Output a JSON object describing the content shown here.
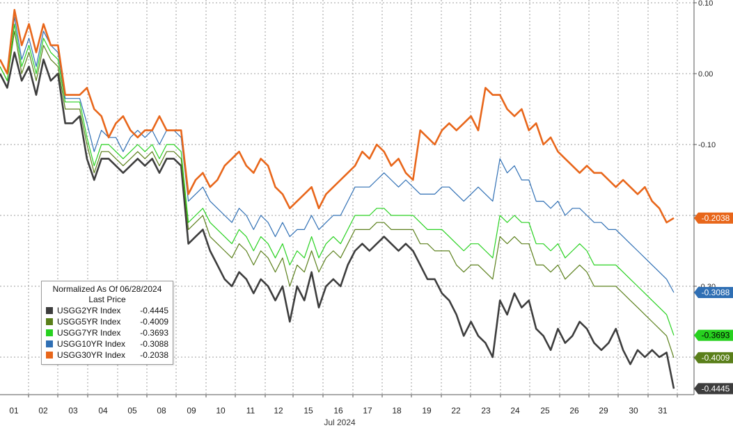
{
  "chart_data": {
    "type": "line",
    "xlabel": "Jul 2024",
    "x_ticks": [
      "01",
      "02",
      "03",
      "04",
      "05",
      "08",
      "09",
      "10",
      "11",
      "12",
      "15",
      "16",
      "17",
      "18",
      "19",
      "22",
      "23",
      "24",
      "25",
      "26",
      "29",
      "30",
      "31"
    ],
    "y_ticks": [
      "0.10",
      "0.00",
      "-0.10",
      "-0.20",
      "-0.30",
      "-0.40"
    ],
    "ylim": [
      -0.455,
      0.105
    ],
    "grid": true,
    "legend": {
      "title": "Normalized As Of 06/28/2024",
      "subtitle": "Last Price",
      "placement": "bottom-left"
    },
    "series": [
      {
        "name": "USGG2YR Index",
        "last": "-0.4445",
        "color": "#3d3d3d",
        "values": [
          0.0,
          -0.02,
          0.03,
          -0.01,
          0.01,
          -0.03,
          0.02,
          -0.01,
          0.0,
          -0.07,
          -0.07,
          -0.06,
          -0.12,
          -0.15,
          -0.12,
          -0.12,
          -0.13,
          -0.14,
          -0.13,
          -0.12,
          -0.13,
          -0.12,
          -0.14,
          -0.12,
          -0.12,
          -0.13,
          -0.24,
          -0.23,
          -0.22,
          -0.25,
          -0.27,
          -0.29,
          -0.3,
          -0.28,
          -0.29,
          -0.31,
          -0.29,
          -0.3,
          -0.32,
          -0.3,
          -0.35,
          -0.3,
          -0.32,
          -0.28,
          -0.33,
          -0.3,
          -0.29,
          -0.3,
          -0.27,
          -0.25,
          -0.24,
          -0.25,
          -0.24,
          -0.23,
          -0.24,
          -0.25,
          -0.24,
          -0.25,
          -0.27,
          -0.29,
          -0.29,
          -0.31,
          -0.32,
          -0.34,
          -0.37,
          -0.35,
          -0.37,
          -0.38,
          -0.4,
          -0.32,
          -0.34,
          -0.31,
          -0.33,
          -0.32,
          -0.36,
          -0.37,
          -0.39,
          -0.36,
          -0.38,
          -0.37,
          -0.35,
          -0.36,
          -0.38,
          -0.39,
          -0.38,
          -0.36,
          -0.39,
          -0.41,
          -0.39,
          -0.4,
          -0.39,
          -0.4,
          -0.3935,
          -0.4445
        ]
      },
      {
        "name": "USGG5YR Index",
        "last": "-0.4009",
        "color": "#5a7f1a",
        "values": [
          0.01,
          -0.01,
          0.06,
          0.0,
          0.03,
          -0.01,
          0.04,
          0.02,
          0.01,
          -0.05,
          -0.05,
          -0.05,
          -0.1,
          -0.14,
          -0.11,
          -0.11,
          -0.12,
          -0.13,
          -0.12,
          -0.11,
          -0.12,
          -0.11,
          -0.13,
          -0.11,
          -0.11,
          -0.12,
          -0.22,
          -0.21,
          -0.2,
          -0.23,
          -0.24,
          -0.25,
          -0.26,
          -0.24,
          -0.25,
          -0.27,
          -0.25,
          -0.26,
          -0.28,
          -0.26,
          -0.3,
          -0.27,
          -0.28,
          -0.25,
          -0.28,
          -0.26,
          -0.25,
          -0.26,
          -0.24,
          -0.22,
          -0.22,
          -0.22,
          -0.21,
          -0.21,
          -0.22,
          -0.22,
          -0.22,
          -0.22,
          -0.24,
          -0.24,
          -0.25,
          -0.25,
          -0.25,
          -0.27,
          -0.28,
          -0.27,
          -0.27,
          -0.28,
          -0.29,
          -0.23,
          -0.24,
          -0.23,
          -0.24,
          -0.24,
          -0.27,
          -0.27,
          -0.28,
          -0.27,
          -0.29,
          -0.28,
          -0.27,
          -0.28,
          -0.3,
          -0.3,
          -0.3,
          -0.3,
          -0.31,
          -0.32,
          -0.33,
          -0.34,
          -0.35,
          -0.36,
          -0.37,
          -0.4009
        ]
      },
      {
        "name": "USGG7YR Index",
        "last": "-0.3693",
        "color": "#27d11f",
        "values": [
          0.01,
          -0.01,
          0.07,
          0.01,
          0.04,
          0.0,
          0.05,
          0.03,
          0.02,
          -0.04,
          -0.04,
          -0.04,
          -0.09,
          -0.13,
          -0.1,
          -0.1,
          -0.11,
          -0.12,
          -0.11,
          -0.1,
          -0.11,
          -0.1,
          -0.12,
          -0.1,
          -0.1,
          -0.11,
          -0.21,
          -0.2,
          -0.19,
          -0.21,
          -0.22,
          -0.23,
          -0.24,
          -0.22,
          -0.23,
          -0.25,
          -0.23,
          -0.24,
          -0.26,
          -0.24,
          -0.27,
          -0.25,
          -0.26,
          -0.23,
          -0.26,
          -0.24,
          -0.23,
          -0.24,
          -0.22,
          -0.2,
          -0.2,
          -0.2,
          -0.19,
          -0.19,
          -0.2,
          -0.2,
          -0.2,
          -0.2,
          -0.21,
          -0.22,
          -0.22,
          -0.22,
          -0.23,
          -0.24,
          -0.25,
          -0.24,
          -0.24,
          -0.25,
          -0.26,
          -0.2,
          -0.21,
          -0.2,
          -0.21,
          -0.21,
          -0.24,
          -0.24,
          -0.25,
          -0.24,
          -0.26,
          -0.25,
          -0.24,
          -0.25,
          -0.27,
          -0.27,
          -0.27,
          -0.27,
          -0.28,
          -0.29,
          -0.3,
          -0.31,
          -0.32,
          -0.33,
          -0.34,
          -0.3693
        ]
      },
      {
        "name": "USGG10YR Index",
        "last": "-0.3088",
        "color": "#2f6fb4",
        "values": [
          0.02,
          0.0,
          0.08,
          0.02,
          0.05,
          0.01,
          0.06,
          0.04,
          0.03,
          -0.035,
          -0.035,
          -0.035,
          -0.07,
          -0.11,
          -0.08,
          -0.09,
          -0.09,
          -0.11,
          -0.09,
          -0.08,
          -0.09,
          -0.08,
          -0.1,
          -0.08,
          -0.08,
          -0.09,
          -0.18,
          -0.17,
          -0.16,
          -0.18,
          -0.19,
          -0.2,
          -0.21,
          -0.19,
          -0.2,
          -0.22,
          -0.2,
          -0.21,
          -0.23,
          -0.21,
          -0.23,
          -0.22,
          -0.22,
          -0.2,
          -0.22,
          -0.21,
          -0.2,
          -0.2,
          -0.18,
          -0.16,
          -0.16,
          -0.16,
          -0.15,
          -0.14,
          -0.15,
          -0.16,
          -0.15,
          -0.16,
          -0.17,
          -0.17,
          -0.17,
          -0.16,
          -0.16,
          -0.17,
          -0.18,
          -0.17,
          -0.16,
          -0.17,
          -0.18,
          -0.12,
          -0.14,
          -0.13,
          -0.15,
          -0.15,
          -0.18,
          -0.18,
          -0.19,
          -0.18,
          -0.2,
          -0.19,
          -0.19,
          -0.2,
          -0.21,
          -0.21,
          -0.22,
          -0.22,
          -0.23,
          -0.24,
          -0.25,
          -0.26,
          -0.27,
          -0.28,
          -0.29,
          -0.3088
        ]
      },
      {
        "name": "USGG30YR Index",
        "last": "-0.2038",
        "color": "#e8661a",
        "values": [
          0.02,
          0.0,
          0.09,
          0.04,
          0.07,
          0.03,
          0.07,
          0.04,
          0.04,
          -0.03,
          -0.03,
          -0.03,
          -0.02,
          -0.05,
          -0.06,
          -0.09,
          -0.07,
          -0.06,
          -0.08,
          -0.09,
          -0.08,
          -0.08,
          -0.06,
          -0.08,
          -0.08,
          -0.08,
          -0.17,
          -0.15,
          -0.14,
          -0.16,
          -0.15,
          -0.13,
          -0.12,
          -0.11,
          -0.13,
          -0.14,
          -0.12,
          -0.13,
          -0.16,
          -0.17,
          -0.19,
          -0.18,
          -0.17,
          -0.16,
          -0.19,
          -0.17,
          -0.16,
          -0.15,
          -0.14,
          -0.13,
          -0.11,
          -0.12,
          -0.1,
          -0.11,
          -0.13,
          -0.12,
          -0.14,
          -0.15,
          -0.08,
          -0.09,
          -0.1,
          -0.08,
          -0.07,
          -0.08,
          -0.07,
          -0.06,
          -0.08,
          -0.02,
          -0.03,
          -0.03,
          -0.05,
          -0.06,
          -0.05,
          -0.08,
          -0.07,
          -0.1,
          -0.09,
          -0.11,
          -0.12,
          -0.13,
          -0.14,
          -0.13,
          -0.14,
          -0.14,
          -0.15,
          -0.16,
          -0.15,
          -0.16,
          -0.17,
          -0.16,
          -0.18,
          -0.19,
          -0.21,
          -0.2038
        ]
      }
    ]
  }
}
